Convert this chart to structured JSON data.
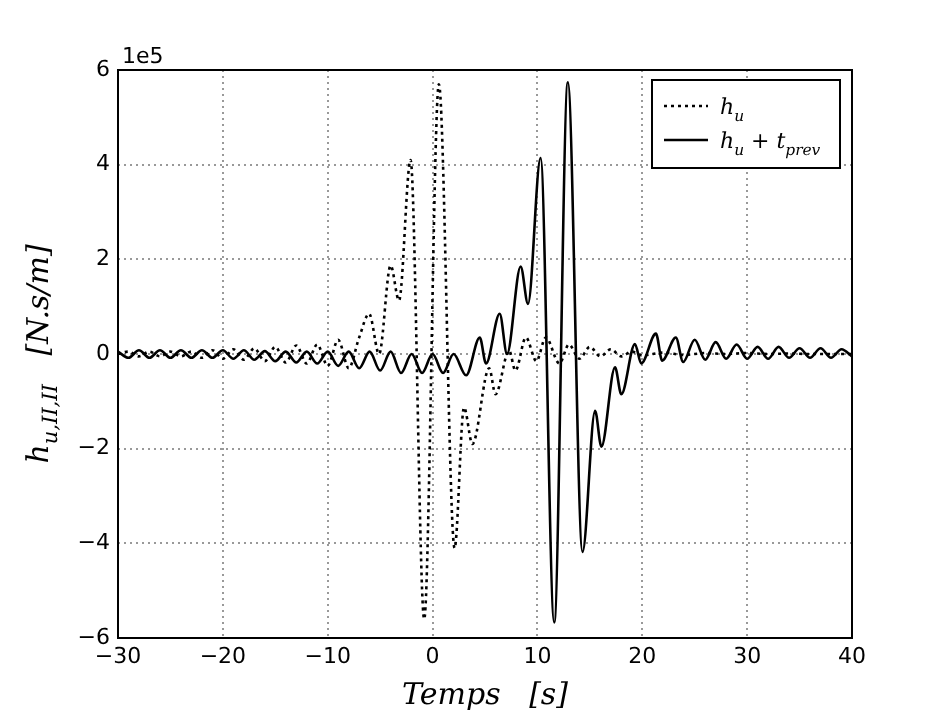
{
  "chart_data": {
    "type": "line",
    "xlabel": "Temps   [s]",
    "ylabel": "h$_{u,II,II}$   [N.s/m]",
    "annotations": [
      "1e5"
    ],
    "xlim": [
      -30,
      40
    ],
    "xticks": [
      {
        "value": -30,
        "label": "−30"
      },
      {
        "value": -20,
        "label": "−20"
      },
      {
        "value": -10,
        "label": "−10"
      },
      0,
      10,
      20,
      30,
      40
    ],
    "ylim": [
      -6,
      6
    ],
    "yticks": [
      {
        "value": -6,
        "label": "−6"
      },
      {
        "value": -4,
        "label": "−4"
      },
      {
        "value": -2,
        "label": "−2"
      },
      0,
      2,
      4,
      6
    ],
    "grid": true,
    "legend": "top right",
    "marker": "none",
    "series": [
      {
        "name": "h$_{u}$",
        "color": "#000000",
        "line_style": "dotted",
        "x": [
          -30,
          -29,
          -28,
          -27,
          -26,
          -25,
          -24,
          -23,
          -22,
          -21,
          -20,
          -19,
          -18,
          -17,
          -16,
          -15,
          -14,
          -13,
          -12,
          -11,
          -10,
          -9,
          -8,
          -7,
          -6.05,
          -5.1,
          -4,
          -3.2,
          -2.1,
          -0.8,
          0.6,
          2.1,
          3,
          3.8,
          5.4,
          6,
          7.3,
          7.9,
          8.9,
          9.9,
          10.8,
          12.1,
          13,
          14,
          15,
          16,
          17,
          18,
          19,
          20,
          22,
          24,
          26,
          28,
          30,
          32,
          34,
          36,
          38,
          40
        ],
        "values": [
          0,
          0.05,
          -0.05,
          0.05,
          -0.05,
          0.05,
          -0.05,
          0.05,
          -0.08,
          0.08,
          -0.1,
          0.1,
          -0.12,
          0.12,
          -0.15,
          0.15,
          -0.18,
          0.18,
          -0.2,
          0.2,
          -0.25,
          0.3,
          -0.3,
          0.35,
          0.85,
          0,
          1.87,
          1.13,
          4.1,
          -5.6,
          5.7,
          -4.1,
          -1.13,
          -1.9,
          -0.3,
          -0.85,
          0.07,
          -0.35,
          0.35,
          -0.15,
          0.35,
          -0.2,
          0.2,
          -0.1,
          0.15,
          -0.05,
          0.1,
          -0.05,
          0.05,
          -0.03,
          0.03,
          -0.02,
          0.02,
          0,
          0.02,
          0,
          0.01,
          0,
          0,
          0
        ]
      },
      {
        "name": "h$_{u}$ + t$_{prev}$",
        "color": "#000000",
        "line_style": "solid",
        "x": [
          -30,
          -29,
          -28,
          -27,
          -26,
          -25,
          -24,
          -23,
          -22,
          -21,
          -20,
          -19,
          -18,
          -17,
          -16,
          -15,
          -14,
          -13,
          -12,
          -11,
          -10,
          -9,
          -8,
          -7,
          -6,
          -5,
          -4,
          -3,
          -2,
          -1,
          0,
          1,
          2,
          3.2,
          4.5,
          5.1,
          6.4,
          7.1,
          8.4,
          9.1,
          10.3,
          11.6,
          12.9,
          14.3,
          15.5,
          16.1,
          17.4,
          18,
          19.3,
          19.9,
          21.3,
          21.9,
          23.2,
          23.9,
          25,
          26,
          27,
          28,
          29,
          30,
          31,
          32,
          33,
          34,
          35,
          36,
          37,
          38,
          39,
          40
        ],
        "values": [
          0.05,
          -0.08,
          0.08,
          -0.08,
          0.08,
          -0.08,
          0.08,
          -0.08,
          0.08,
          -0.08,
          0.08,
          -0.1,
          0.08,
          -0.12,
          0.06,
          -0.15,
          0.05,
          -0.18,
          0.05,
          -0.2,
          0.05,
          -0.25,
          0.05,
          -0.3,
          0.05,
          -0.35,
          0.05,
          -0.4,
          0,
          -0.4,
          0,
          -0.4,
          0,
          -0.45,
          0.35,
          -0.2,
          0.85,
          0,
          1.85,
          1.06,
          4.14,
          -5.67,
          5.74,
          -4.18,
          -1.2,
          -1.96,
          -0.28,
          -0.85,
          0.21,
          -0.2,
          0.43,
          -0.14,
          0.35,
          -0.17,
          0.3,
          -0.12,
          0.25,
          -0.1,
          0.2,
          -0.1,
          0.15,
          -0.1,
          0.15,
          -0.08,
          0.12,
          -0.08,
          0.12,
          -0.08,
          0.1,
          -0.05
        ]
      }
    ]
  }
}
